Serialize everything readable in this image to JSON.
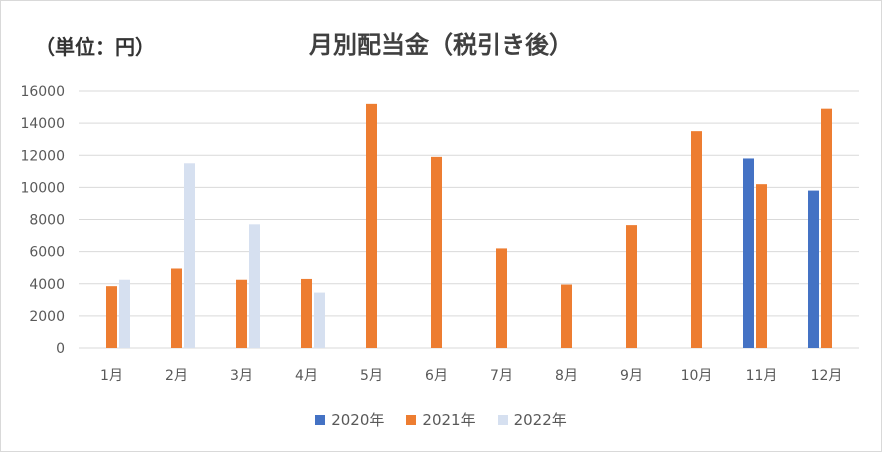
{
  "chart_data": {
    "type": "bar",
    "title": "月別配当金（税引き後）",
    "unit_label": "（単位：円）",
    "categories": [
      "1月",
      "2月",
      "3月",
      "4月",
      "5月",
      "6月",
      "7月",
      "8月",
      "9月",
      "10月",
      "11月",
      "12月"
    ],
    "series": [
      {
        "name": "2020年",
        "color": "#4472c4",
        "values": [
          0,
          0,
          0,
          0,
          0,
          0,
          0,
          0,
          0,
          0,
          11800,
          9800
        ]
      },
      {
        "name": "2021年",
        "color": "#ed7d31",
        "values": [
          3850,
          4950,
          4250,
          4300,
          15200,
          11900,
          6200,
          3950,
          7650,
          13500,
          10200,
          14900
        ]
      },
      {
        "name": "2022年",
        "color": "#d6e0f0",
        "values": [
          4250,
          11500,
          7700,
          3450,
          0,
          0,
          0,
          0,
          0,
          0,
          0,
          0
        ]
      }
    ],
    "ylim": [
      0,
      16000
    ],
    "yticks": [
      0,
      2000,
      4000,
      6000,
      8000,
      10000,
      12000,
      14000,
      16000
    ],
    "grid": true,
    "legend_position": "bottom"
  }
}
